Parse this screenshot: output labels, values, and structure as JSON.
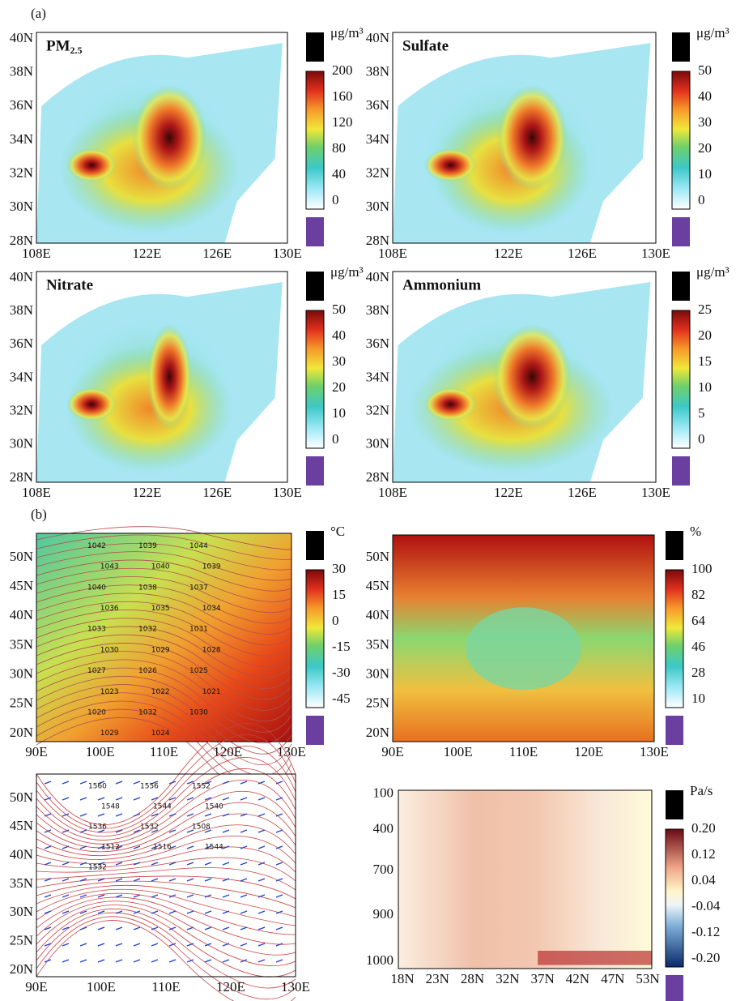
{
  "labels": {
    "a": "(a)",
    "b": "(b)"
  },
  "panels": [
    {
      "title": "PM",
      "title_sub": "2.5",
      "unit": "μg/m³",
      "colorbar_ticks": [
        "200",
        "160",
        "120",
        "80",
        "40",
        "0"
      ],
      "lat_ticks": [
        "40N",
        "38N",
        "36N",
        "34N",
        "32N",
        "30N",
        "28N"
      ],
      "lon_ticks": [
        "108E",
        "122E",
        "126E",
        "130E"
      ]
    },
    {
      "title": "Sulfate",
      "unit": "μg/m³",
      "colorbar_ticks": [
        "50",
        "40",
        "30",
        "20",
        "10",
        "0"
      ],
      "lat_ticks": [
        "40N",
        "38N",
        "36N",
        "34N",
        "32N",
        "30N",
        "28N"
      ],
      "lon_ticks": [
        "108E",
        "122E",
        "126E",
        "130E"
      ]
    },
    {
      "title": "Nitrate",
      "unit": "μg/m³",
      "colorbar_ticks": [
        "50",
        "40",
        "30",
        "20",
        "10",
        "0"
      ],
      "lat_ticks": [
        "40N",
        "38N",
        "36N",
        "34N",
        "32N",
        "30N",
        "28N"
      ],
      "lon_ticks": [
        "108E",
        "122E",
        "126E",
        "130E"
      ]
    },
    {
      "title": "Ammonium",
      "unit": "μg/m³",
      "colorbar_ticks": [
        "25",
        "20",
        "15",
        "10",
        "5",
        "0"
      ],
      "lat_ticks": [
        "40N",
        "38N",
        "36N",
        "34N",
        "32N",
        "30N",
        "28N"
      ],
      "lon_ticks": [
        "108E",
        "122E",
        "126E",
        "130E"
      ]
    },
    {
      "unit": "°C",
      "colorbar_ticks": [
        "30",
        "15",
        "0",
        "-15",
        "-30",
        "-45"
      ],
      "lat_ticks": [
        "50N",
        "45N",
        "40N",
        "35N",
        "30N",
        "25N",
        "20N"
      ],
      "lon_ticks": [
        "90E",
        "100E",
        "110E",
        "120E",
        "130E"
      ],
      "contour_labels": [
        "1042",
        "1039",
        "1044",
        "1043",
        "1040",
        "1039",
        "1040",
        "1038",
        "1037",
        "1036",
        "1035",
        "1034",
        "1033",
        "1032",
        "1031",
        "1030",
        "1029",
        "1028",
        "1027",
        "1026",
        "1025",
        "1023",
        "1022",
        "1021",
        "1020",
        "1032",
        "1030",
        "1029",
        "1024"
      ]
    },
    {
      "unit": "%",
      "colorbar_ticks": [
        "100",
        "82",
        "64",
        "46",
        "28",
        "10"
      ],
      "lat_ticks": [
        "50N",
        "45N",
        "40N",
        "35N",
        "30N",
        "25N",
        "20N"
      ],
      "lon_ticks": [
        "90E",
        "100E",
        "110E",
        "120E",
        "130E"
      ]
    },
    {
      "lat_ticks": [
        "50N",
        "45N",
        "40N",
        "35N",
        "30N",
        "25N",
        "20N"
      ],
      "lon_ticks": [
        "90E",
        "100E",
        "110E",
        "120E",
        "130E"
      ],
      "contour_labels": [
        "1560",
        "1556",
        "1552",
        "1548",
        "1544",
        "1540",
        "1536",
        "1532",
        "1508",
        "1512",
        "1516",
        "1544",
        "1532"
      ]
    },
    {
      "unit": "Pa/s",
      "colorbar_ticks": [
        "0.20",
        "0.12",
        "0.04",
        "-0.04",
        "-0.12",
        "-0.20"
      ],
      "y_ticks": [
        "100",
        "400",
        "700",
        "900",
        "1000"
      ],
      "x_ticks": [
        "18N",
        "23N",
        "28N",
        "32N",
        "37N",
        "42N",
        "47N",
        "53N"
      ]
    }
  ]
}
